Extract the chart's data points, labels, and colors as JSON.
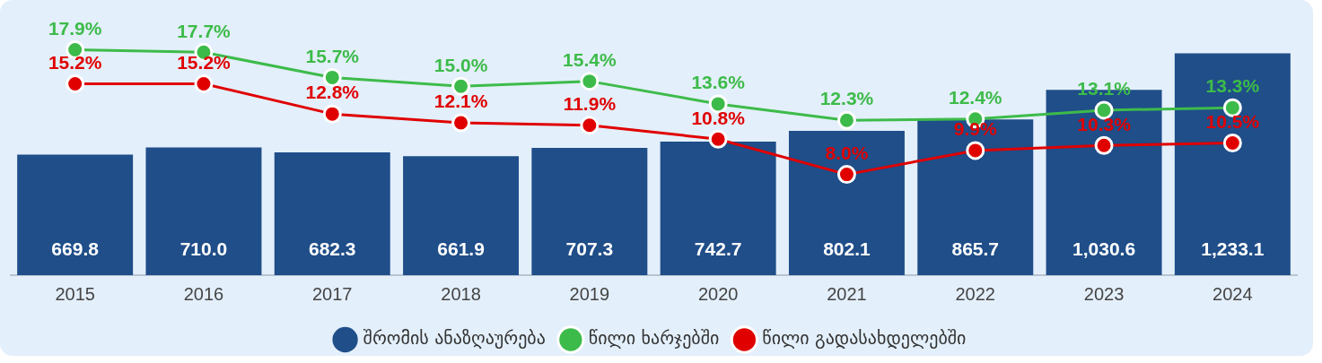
{
  "chart_data": {
    "type": "bar",
    "categories": [
      "2015",
      "2016",
      "2017",
      "2018",
      "2019",
      "2020",
      "2021",
      "2022",
      "2023",
      "2024"
    ],
    "series": [
      {
        "name": "შრომის ანაზღაურება",
        "color": "#1f4e89",
        "values": [
          669.8,
          710.0,
          682.3,
          661.9,
          707.3,
          742.7,
          802.1,
          865.7,
          1030.6,
          1233.1
        ],
        "value_labels": [
          "669.8",
          "710.0",
          "682.3",
          "661.9",
          "707.3",
          "742.7",
          "802.1",
          "865.7",
          "1,030.6",
          "1,233.1"
        ]
      },
      {
        "name": "წილი ხარჯებში",
        "type": "line",
        "axis": "y2",
        "color": "#3dbb4a",
        "values": [
          17.9,
          17.7,
          15.7,
          15.0,
          15.4,
          13.6,
          12.3,
          12.4,
          13.1,
          13.3
        ],
        "value_labels": [
          "17.9%",
          "17.7%",
          "15.7%",
          "15.0%",
          "15.4%",
          "13.6%",
          "12.3%",
          "12.4%",
          "13.1%",
          "13.3%"
        ]
      },
      {
        "name": "წილი გადასახდელებში",
        "type": "line",
        "axis": "y2",
        "color": "#e00000",
        "values": [
          15.2,
          15.2,
          12.8,
          12.1,
          11.9,
          10.8,
          8.0,
          9.9,
          10.3,
          10.5
        ],
        "value_labels": [
          "15.2%",
          "15.2%",
          "12.8%",
          "12.1%",
          "11.9%",
          "10.8%",
          "8.0%",
          "9.9%",
          "10.3%",
          "10.5%"
        ]
      }
    ],
    "tick_labels": "x",
    "grid": false,
    "legend": "bottom",
    "marker": "circle",
    "line_style": "solid"
  }
}
